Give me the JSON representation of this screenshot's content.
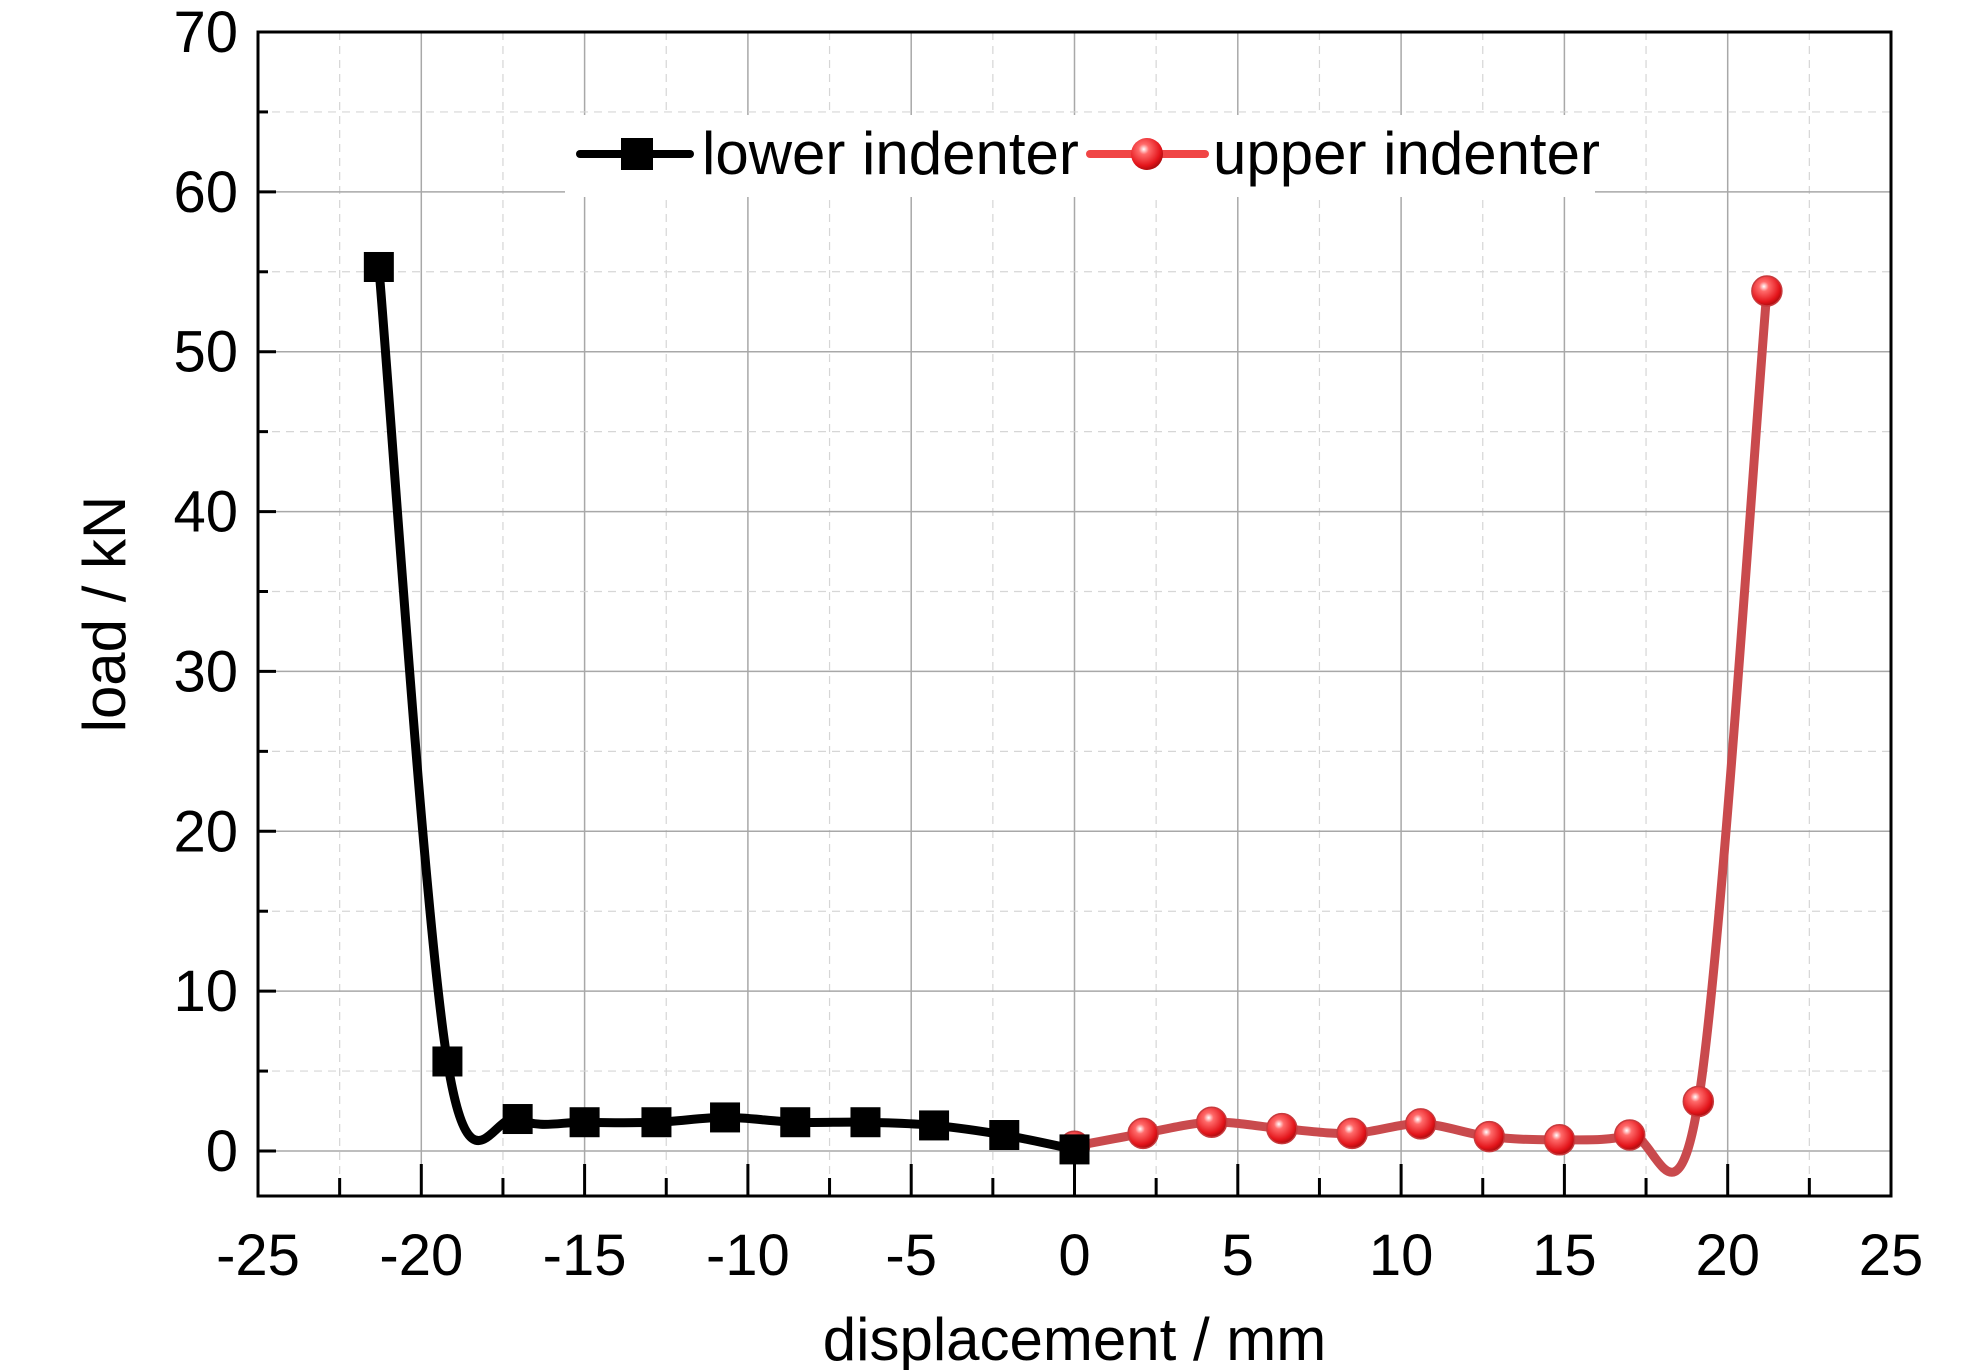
{
  "chart_data": {
    "type": "line",
    "title": "",
    "xlabel": "displacement / mm",
    "ylabel": "load / kN",
    "xlim": [
      -25,
      25
    ],
    "ylim": [
      -3,
      70
    ],
    "xticks": [
      -25,
      -20,
      -15,
      -10,
      -5,
      0,
      5,
      10,
      15,
      20,
      25
    ],
    "yticks": [
      0,
      10,
      20,
      30,
      40,
      50,
      60,
      70
    ],
    "grid": true,
    "legend_position": "top-center",
    "series": [
      {
        "name": "lower indenter",
        "color": "#000000",
        "marker": "square",
        "x": [
          -21.3,
          -19.2,
          -17.05,
          -15.0,
          -12.8,
          -10.7,
          -8.55,
          -6.4,
          -4.3,
          -2.15,
          0.0
        ],
        "y": [
          55.3,
          5.6,
          2.0,
          1.8,
          1.8,
          2.1,
          1.8,
          1.8,
          1.6,
          1.0,
          0.1
        ]
      },
      {
        "name": "upper indenter",
        "color": "#e8393d",
        "marker": "sphere",
        "x": [
          0.0,
          2.1,
          4.2,
          6.35,
          8.5,
          10.6,
          12.7,
          14.85,
          17.0,
          19.1,
          21.2
        ],
        "y": [
          0.3,
          1.1,
          1.8,
          1.4,
          1.1,
          1.7,
          0.9,
          0.7,
          1.0,
          3.1,
          53.8
        ]
      }
    ]
  }
}
